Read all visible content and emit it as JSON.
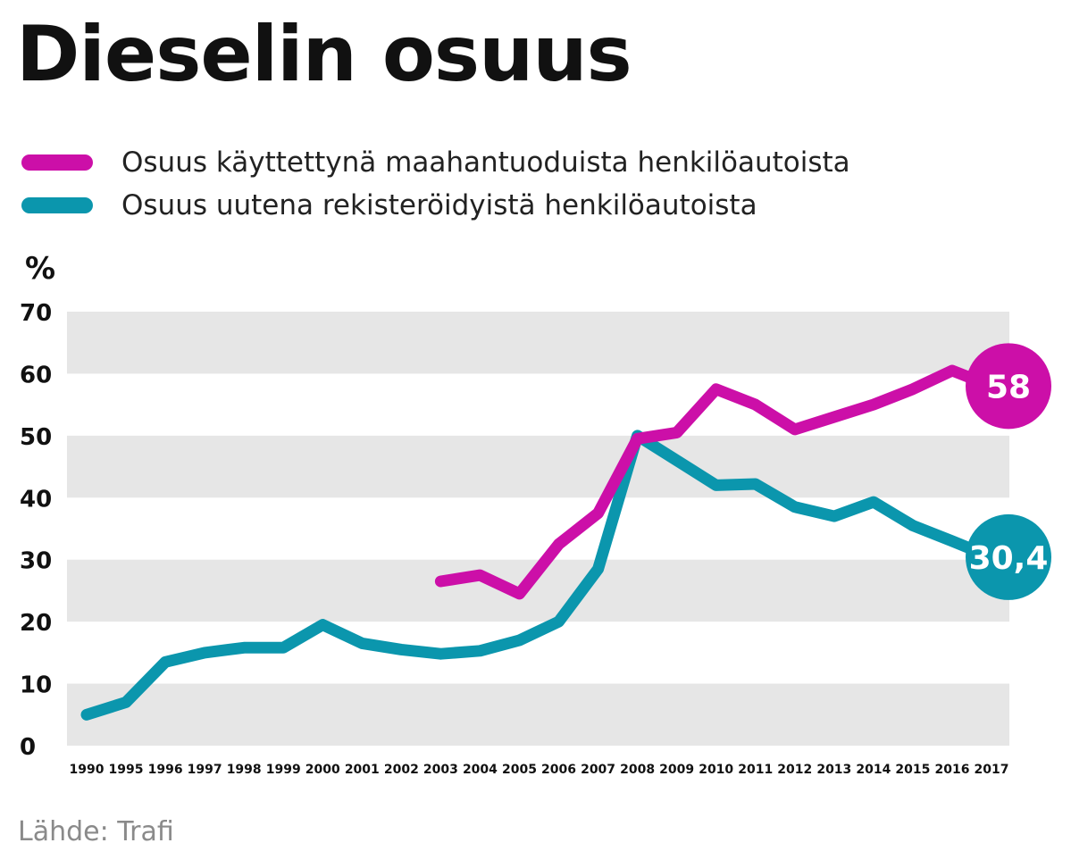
{
  "chart_data": {
    "type": "line",
    "title": "Dieselin osuus",
    "ylabel": "%",
    "xlabel": "",
    "ylim": [
      0,
      70
    ],
    "yticks": [
      0,
      10,
      20,
      30,
      40,
      50,
      60,
      70
    ],
    "categories": [
      "1990",
      "1995",
      "1996",
      "1997",
      "1998",
      "1999",
      "2000",
      "2001",
      "2002",
      "2003",
      "2004",
      "2005",
      "2006",
      "2007",
      "2008",
      "2009",
      "2010",
      "2011",
      "2012",
      "2013",
      "2014",
      "2015",
      "2016",
      "2017"
    ],
    "series": [
      {
        "name": "Osuus käyttettynä maahantuoduista henkilöautoista",
        "color": "#cc0fa8",
        "values": [
          null,
          null,
          null,
          null,
          null,
          null,
          null,
          null,
          null,
          26.5,
          27.5,
          24.5,
          32.5,
          37.5,
          49.5,
          50.5,
          57.5,
          55,
          51,
          53,
          55,
          57.5,
          60.5,
          58
        ],
        "end_label": "58"
      },
      {
        "name": "Osuus uutena rekisteröidyistä henkilöautoista",
        "color": "#0b96ad",
        "values": [
          5,
          7,
          13.5,
          15,
          15.8,
          15.8,
          19.5,
          16.5,
          15.5,
          14.8,
          15.3,
          17,
          20,
          28.5,
          50,
          46,
          42,
          42.2,
          38.5,
          37,
          39.3,
          35.5,
          33,
          30.4
        ],
        "end_label": "30,4"
      }
    ],
    "grid": "alternating horizontal bands",
    "legend": "top-left"
  },
  "source": "Lähde: Trafi"
}
